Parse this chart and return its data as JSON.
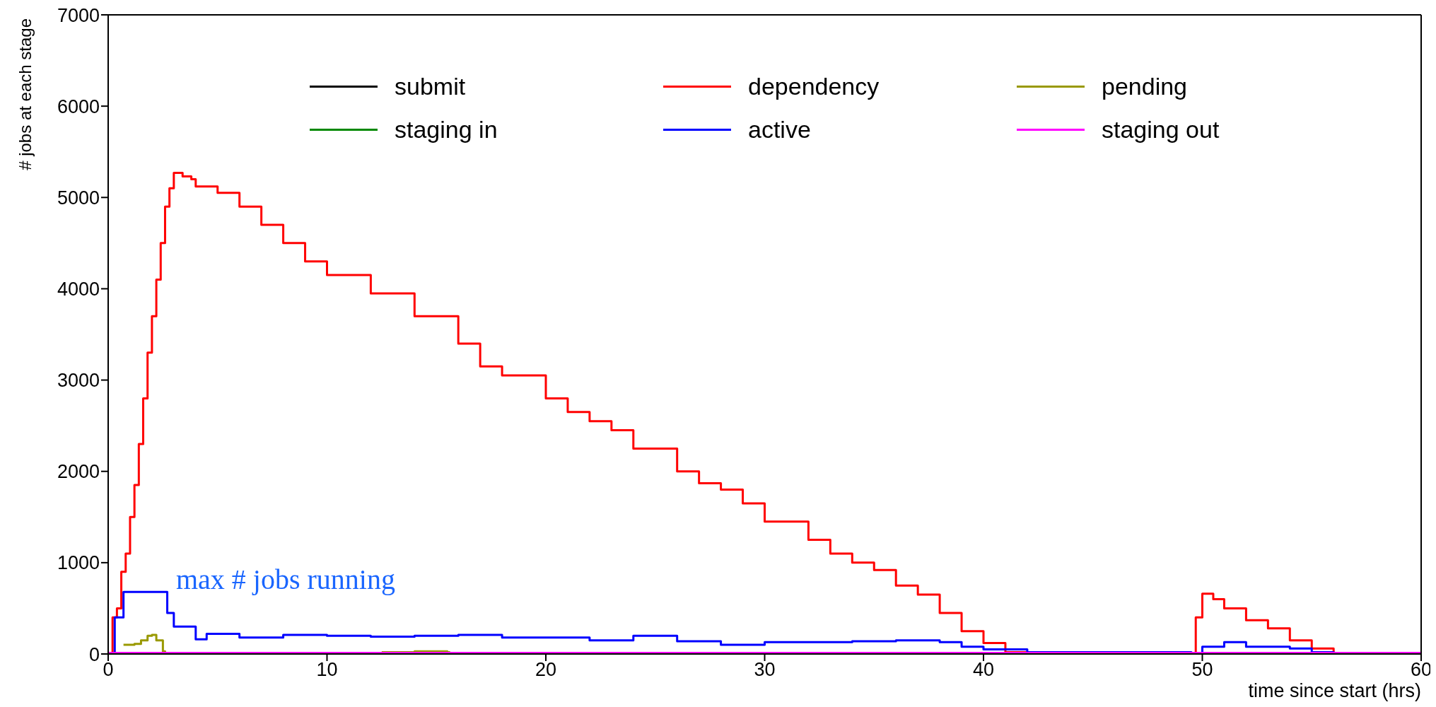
{
  "chart_data": {
    "type": "step",
    "xlabel": "time since start (hrs)",
    "ylabel": "# jobs at each stage",
    "xlim": [
      0,
      60
    ],
    "xticks": [
      0,
      10,
      20,
      30,
      40,
      50,
      60
    ],
    "ylim": [
      0,
      7000
    ],
    "yticks": [
      0,
      1000,
      2000,
      3000,
      4000,
      5000,
      6000,
      7000
    ],
    "legend": "top",
    "annotations": [
      "max # jobs running"
    ],
    "series": [
      {
        "name": "submit",
        "color": "#000000"
      },
      {
        "name": "dependency",
        "color": "#ff0000",
        "x": [
          0,
          0.2,
          0.4,
          0.6,
          0.8,
          1.0,
          1.2,
          1.4,
          1.6,
          1.8,
          2.0,
          2.2,
          2.4,
          2.6,
          2.8,
          3.0,
          3.4,
          3.8,
          4.0,
          5,
          6,
          7,
          8,
          9,
          10,
          12,
          14,
          16,
          17,
          18,
          20,
          21,
          22,
          23,
          24,
          26,
          27,
          28,
          29,
          30,
          32,
          33,
          34,
          35,
          36,
          37,
          38,
          39,
          40,
          41,
          42,
          49.5,
          49.7,
          50,
          50.5,
          51,
          52,
          53,
          54,
          55,
          56,
          57,
          60
        ],
        "values": [
          0,
          400,
          500,
          900,
          1100,
          1500,
          1850,
          2300,
          2800,
          3300,
          3700,
          4100,
          4500,
          4900,
          5100,
          5270,
          5230,
          5200,
          5120,
          5050,
          4900,
          4700,
          4500,
          4300,
          4150,
          3950,
          3700,
          3400,
          3150,
          3050,
          2800,
          2650,
          2550,
          2450,
          2250,
          2000,
          1870,
          1800,
          1650,
          1450,
          1250,
          1100,
          1000,
          920,
          750,
          650,
          450,
          250,
          120,
          20,
          0,
          0,
          400,
          660,
          600,
          500,
          370,
          280,
          150,
          60,
          10,
          0,
          0
        ]
      },
      {
        "name": "pending",
        "color": "#999900",
        "x": [
          0.7,
          1.2,
          1.5,
          1.8,
          2.0,
          2.2,
          2.5,
          2.6,
          12,
          12.5,
          14,
          15.5,
          15.6
        ],
        "values": [
          100,
          110,
          150,
          200,
          210,
          150,
          30,
          0,
          null,
          20,
          30,
          20,
          0
        ]
      },
      {
        "name": "staging in",
        "color": "#008800"
      },
      {
        "name": "active",
        "color": "#0000ff",
        "x": [
          0,
          0.3,
          0.7,
          1.0,
          2.5,
          2.7,
          3,
          4,
          4.5,
          6,
          8,
          10,
          12,
          14,
          16,
          18,
          20,
          22,
          24,
          26,
          28,
          30,
          32,
          34,
          36,
          38,
          39,
          40,
          42,
          45,
          49.5,
          50,
          51,
          52,
          54,
          55,
          56,
          57,
          60
        ],
        "values": [
          0,
          400,
          680,
          680,
          680,
          450,
          300,
          160,
          220,
          180,
          210,
          200,
          190,
          200,
          210,
          180,
          180,
          150,
          200,
          140,
          100,
          130,
          130,
          140,
          150,
          130,
          80,
          50,
          20,
          20,
          10,
          80,
          130,
          80,
          60,
          20,
          10,
          0,
          0
        ]
      },
      {
        "name": "staging out",
        "color": "#ff00ff",
        "x": [
          0,
          60
        ],
        "values": [
          0,
          0
        ]
      }
    ]
  }
}
